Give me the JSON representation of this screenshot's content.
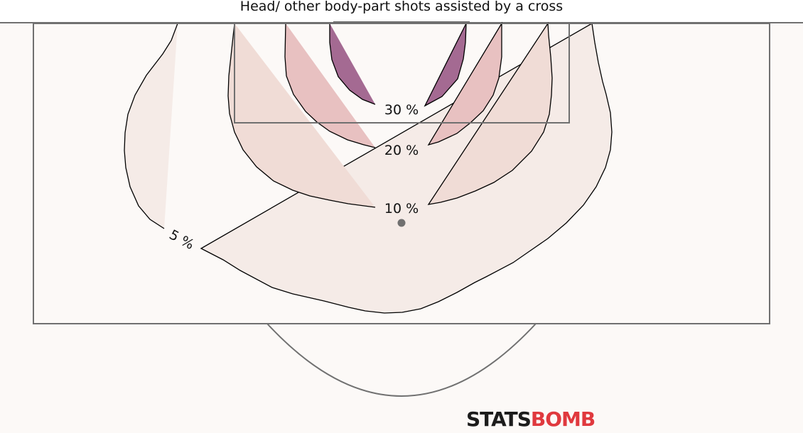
{
  "title": "Head/ other body-part shots assisted by a cross",
  "chart_data": {
    "type": "contour",
    "title": "Head/ other body-part shots assisted by a cross",
    "levels": [
      {
        "label": "5 %",
        "value": 5,
        "fill": "#f5ebe7"
      },
      {
        "label": "10 %",
        "value": 10,
        "fill": "#f0dcd6"
      },
      {
        "label": "20 %",
        "value": 20,
        "fill": "#e8c1c1"
      },
      {
        "label": "30 %",
        "value": 30,
        "fill": "#a46a92"
      }
    ],
    "stroke_color": "#000000",
    "pitch_line_color": "#707070",
    "background": "#fcf9f7"
  },
  "logo": {
    "part1": "STATS",
    "part2": "BOMB"
  }
}
